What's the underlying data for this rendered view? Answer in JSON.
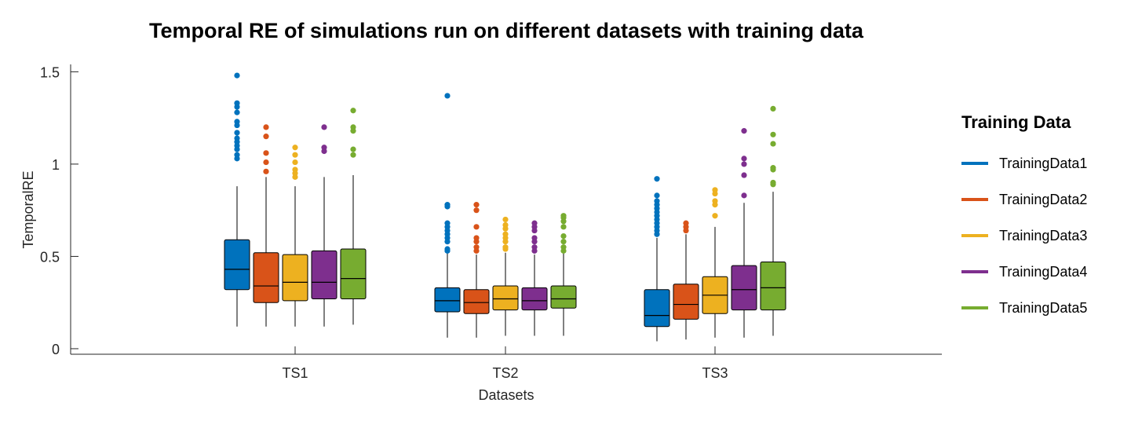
{
  "chart_data": {
    "type": "boxplot",
    "title": "Temporal RE of simulations run on different datasets with training data",
    "xlabel": "Datasets",
    "ylabel": "TemporalRE",
    "ylim": [
      -0.03,
      1.54
    ],
    "yticks": [
      0,
      0.5,
      1,
      1.5
    ],
    "ytick_labels": [
      "0",
      "0.5",
      "1",
      "1.5"
    ],
    "categories": [
      "TS1",
      "TS2",
      "TS3"
    ],
    "legend": {
      "title": "Training Data",
      "position": "right"
    },
    "series": [
      {
        "name": "TrainingData1",
        "color": "#0072BD",
        "boxes": [
          {
            "whisker_low": 0.12,
            "q1": 0.32,
            "median": 0.43,
            "q3": 0.59,
            "whisker_high": 0.88,
            "outliers": [
              1.48,
              1.33,
              1.31,
              1.28,
              1.23,
              1.21,
              1.17,
              1.14,
              1.12,
              1.1,
              1.08,
              1.05,
              1.03
            ]
          },
          {
            "whisker_low": 0.06,
            "q1": 0.2,
            "median": 0.26,
            "q3": 0.33,
            "whisker_high": 0.52,
            "outliers": [
              1.37,
              0.78,
              0.77,
              0.68,
              0.66,
              0.64,
              0.62,
              0.6,
              0.58,
              0.54,
              0.53
            ]
          },
          {
            "whisker_low": 0.04,
            "q1": 0.12,
            "median": 0.18,
            "q3": 0.32,
            "whisker_high": 0.6,
            "outliers": [
              0.92,
              0.83,
              0.8,
              0.78,
              0.76,
              0.74,
              0.72,
              0.7,
              0.68,
              0.66,
              0.64,
              0.62
            ]
          }
        ]
      },
      {
        "name": "TrainingData2",
        "color": "#D95319",
        "boxes": [
          {
            "whisker_low": 0.12,
            "q1": 0.25,
            "median": 0.34,
            "q3": 0.52,
            "whisker_high": 0.93,
            "outliers": [
              1.2,
              1.15,
              1.06,
              1.01,
              0.96
            ]
          },
          {
            "whisker_low": 0.06,
            "q1": 0.19,
            "median": 0.25,
            "q3": 0.32,
            "whisker_high": 0.51,
            "outliers": [
              0.78,
              0.75,
              0.66,
              0.6,
              0.58,
              0.55,
              0.53
            ]
          },
          {
            "whisker_low": 0.05,
            "q1": 0.16,
            "median": 0.24,
            "q3": 0.35,
            "whisker_high": 0.62,
            "outliers": [
              0.68,
              0.66,
              0.64
            ]
          }
        ]
      },
      {
        "name": "TrainingData3",
        "color": "#EDB120",
        "boxes": [
          {
            "whisker_low": 0.12,
            "q1": 0.26,
            "median": 0.36,
            "q3": 0.51,
            "whisker_high": 0.88,
            "outliers": [
              1.09,
              1.05,
              1.01,
              0.97,
              0.95,
              0.93
            ]
          },
          {
            "whisker_low": 0.07,
            "q1": 0.21,
            "median": 0.27,
            "q3": 0.34,
            "whisker_high": 0.52,
            "outliers": [
              0.7,
              0.67,
              0.65,
              0.62,
              0.6,
              0.58,
              0.55,
              0.54
            ]
          },
          {
            "whisker_low": 0.06,
            "q1": 0.19,
            "median": 0.29,
            "q3": 0.39,
            "whisker_high": 0.66,
            "outliers": [
              0.86,
              0.84,
              0.8,
              0.78,
              0.72
            ]
          }
        ]
      },
      {
        "name": "TrainingData4",
        "color": "#7E2F8E",
        "boxes": [
          {
            "whisker_low": 0.12,
            "q1": 0.27,
            "median": 0.36,
            "q3": 0.53,
            "whisker_high": 0.93,
            "outliers": [
              1.2,
              1.09,
              1.07
            ]
          },
          {
            "whisker_low": 0.07,
            "q1": 0.21,
            "median": 0.26,
            "q3": 0.33,
            "whisker_high": 0.51,
            "outliers": [
              0.68,
              0.66,
              0.64,
              0.6,
              0.58,
              0.55,
              0.53
            ]
          },
          {
            "whisker_low": 0.06,
            "q1": 0.21,
            "median": 0.32,
            "q3": 0.45,
            "whisker_high": 0.79,
            "outliers": [
              1.18,
              1.03,
              1.0,
              0.94,
              0.83
            ]
          }
        ]
      },
      {
        "name": "TrainingData5",
        "color": "#77AC30",
        "boxes": [
          {
            "whisker_low": 0.13,
            "q1": 0.27,
            "median": 0.38,
            "q3": 0.54,
            "whisker_high": 0.94,
            "outliers": [
              1.29,
              1.2,
              1.18,
              1.08,
              1.05
            ]
          },
          {
            "whisker_low": 0.07,
            "q1": 0.22,
            "median": 0.27,
            "q3": 0.34,
            "whisker_high": 0.52,
            "outliers": [
              0.72,
              0.71,
              0.69,
              0.66,
              0.61,
              0.58,
              0.55,
              0.53
            ]
          },
          {
            "whisker_low": 0.07,
            "q1": 0.21,
            "median": 0.33,
            "q3": 0.47,
            "whisker_high": 0.85,
            "outliers": [
              1.3,
              1.16,
              1.11,
              0.98,
              0.97,
              0.9,
              0.89
            ]
          }
        ]
      }
    ]
  }
}
